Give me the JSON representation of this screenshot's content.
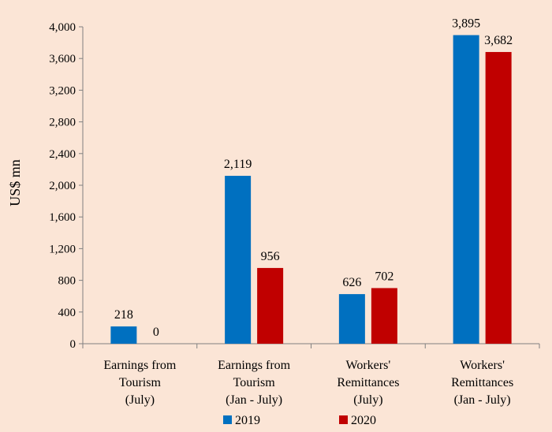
{
  "chart_data": {
    "type": "bar",
    "title": "",
    "xlabel": "",
    "ylabel": "US$ mn",
    "ylim": [
      0,
      4000
    ],
    "yticks": [
      0,
      400,
      800,
      1200,
      1600,
      2000,
      2400,
      2800,
      3200,
      3600,
      4000
    ],
    "ytick_labels": [
      "0",
      "400",
      "800",
      "1,200",
      "1,600",
      "2,000",
      "2,400",
      "2,800",
      "3,200",
      "3,600",
      "4,000"
    ],
    "categories": [
      [
        "Earnings from",
        "Tourism",
        "(July)"
      ],
      [
        "Earnings from",
        "Tourism",
        "(Jan - July)"
      ],
      [
        "Workers'",
        "Remittances",
        "(July)"
      ],
      [
        "Workers'",
        "Remittances",
        "(Jan - July)"
      ]
    ],
    "series": [
      {
        "name": "2019",
        "color": "#0070c0",
        "values": [
          218,
          2119,
          626,
          3895
        ],
        "labels": [
          "218",
          "2,119",
          "626",
          "3,895"
        ]
      },
      {
        "name": "2020",
        "color": "#c00000",
        "values": [
          0,
          956,
          702,
          3682
        ],
        "labels": [
          "0",
          "956",
          "702",
          "3,682"
        ]
      }
    ],
    "grid": false,
    "legend": "bottom"
  }
}
